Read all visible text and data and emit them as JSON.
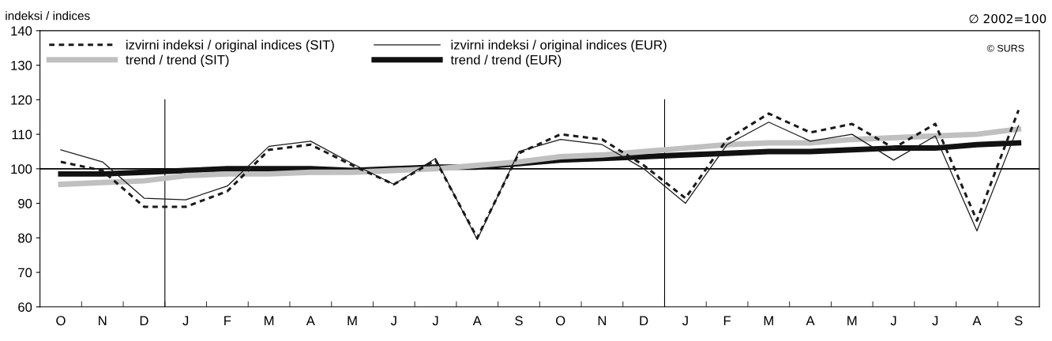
{
  "chart_data": {
    "type": "line",
    "ylabel": "indeksi / indices",
    "annotations": [
      "∅ 2002=100",
      "© SURS"
    ],
    "categories": [
      "O",
      "N",
      "D",
      "J",
      "F",
      "M",
      "A",
      "M",
      "J",
      "J",
      "A",
      "S",
      "O",
      "N",
      "D",
      "J",
      "F",
      "M",
      "A",
      "M",
      "J",
      "J",
      "A",
      "S"
    ],
    "series": [
      {
        "name": "izvirni indeksi / original indices (SIT)",
        "color": "#1a1a1a",
        "line_style": "dashed",
        "values": [
          102,
          99.5,
          89,
          89,
          93.5,
          105.5,
          107,
          101,
          95.5,
          102.5,
          80,
          104.5,
          110,
          108.5,
          101,
          91.5,
          108.5,
          116,
          110.5,
          113,
          106,
          113,
          85,
          117
        ]
      },
      {
        "name": "izvirni indeksi / original indices (EUR)",
        "color": "#1a1a1a",
        "line_style": "solid",
        "values": [
          105.5,
          102,
          91.5,
          91,
          95,
          106.5,
          108,
          101.5,
          95.5,
          103,
          79.5,
          105,
          108.5,
          107,
          100,
          90,
          107,
          113.5,
          108,
          110,
          102.5,
          109.5,
          82,
          112.5
        ]
      },
      {
        "name": "trend / trend (SIT)",
        "color": "#c0c0c0",
        "line_style": "solid",
        "values": [
          95.5,
          96,
          96.5,
          98,
          98.5,
          98.5,
          99,
          99,
          99.5,
          100,
          101,
          102,
          103.5,
          104,
          105,
          106,
          107,
          107.5,
          107.5,
          108.5,
          109,
          109.5,
          110,
          111.5
        ]
      },
      {
        "name": "trend / trend (EUR)",
        "color": "#111111",
        "line_style": "solid",
        "values": [
          98.5,
          98.5,
          99,
          99.5,
          100,
          100,
          100,
          99.5,
          100,
          100.5,
          100.5,
          101.5,
          102.5,
          103,
          103.5,
          104,
          104.5,
          105,
          105,
          105.5,
          106,
          106,
          107,
          107.5
        ]
      }
    ],
    "ylim": [
      60,
      140
    ],
    "yticks": [
      60,
      70,
      80,
      90,
      100,
      110,
      120,
      130,
      140
    ],
    "ref_lines": [
      {
        "axis": "y",
        "value": 100,
        "color": "#000000"
      }
    ],
    "grid": false,
    "legend": "top left",
    "marker": "none"
  }
}
